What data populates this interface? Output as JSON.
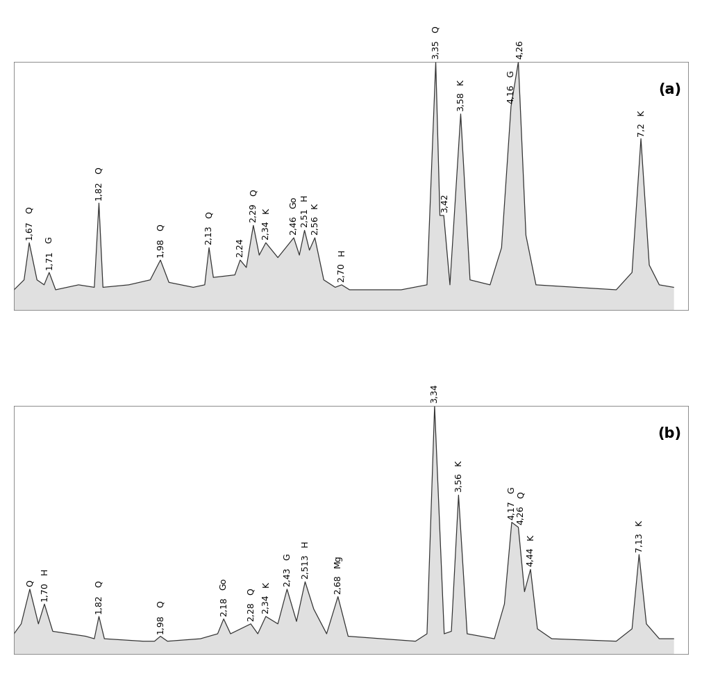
{
  "chart_data": [
    {
      "type": "line",
      "title": "(a)",
      "color": "#333333",
      "xlim": [
        56,
        9
      ],
      "ylim": [
        0,
        100
      ],
      "xticks": [],
      "yticks": [],
      "tick_labels": false,
      "x": [
        56,
        55.3,
        54.94,
        54.4,
        53.9,
        53.55,
        53.1,
        51.5,
        50.4,
        50.08,
        49.8,
        48,
        46.5,
        45.79,
        45.2,
        43.5,
        42.7,
        42.4,
        42.1,
        40.6,
        40.23,
        39.8,
        39.31,
        38.9,
        38.44,
        37.6,
        36.49,
        36.1,
        35.74,
        35.4,
        35.02,
        34.4,
        33.6,
        33.15,
        32.6,
        29,
        27.2,
        26.59,
        26.3,
        26.03,
        25.6,
        24.85,
        24.2,
        22.8,
        22,
        21.34,
        20.83,
        20.3,
        19.6,
        14,
        12.9,
        12.28,
        11.7,
        11,
        10
      ],
      "values": [
        8,
        12,
        27,
        12,
        10,
        15,
        8,
        10,
        9,
        43,
        9,
        10,
        12,
        20,
        11,
        9,
        10,
        25,
        13,
        14,
        20,
        17,
        34,
        22,
        27,
        21,
        29,
        22,
        32,
        24,
        29,
        12,
        9,
        10,
        8,
        8,
        10,
        100,
        38,
        38,
        10,
        79,
        12,
        10,
        25,
        82,
        100,
        30,
        10,
        8,
        15,
        69,
        18,
        10,
        9
      ],
      "annotations": [
        {
          "x": 54.94,
          "y": 27,
          "text": "1,67",
          "mineral": "Q"
        },
        {
          "x": 53.55,
          "y": 15,
          "text": "1,71",
          "mineral": "G"
        },
        {
          "x": 50.08,
          "y": 43,
          "text": "1,82",
          "mineral": "Q"
        },
        {
          "x": 45.79,
          "y": 20,
          "text": "1,98",
          "mineral": "Q"
        },
        {
          "x": 42.4,
          "y": 25,
          "text": "2,13",
          "mineral": "Q"
        },
        {
          "x": 40.23,
          "y": 20,
          "text": "2,24",
          "mineral": null
        },
        {
          "x": 39.31,
          "y": 34,
          "text": "2,29",
          "mineral": "Q"
        },
        {
          "x": 38.44,
          "y": 27,
          "text": "2,34",
          "mineral": "K"
        },
        {
          "x": 36.49,
          "y": 29,
          "text": "2,46",
          "mineral": "Go"
        },
        {
          "x": 35.74,
          "y": 32,
          "text": "2,51",
          "mineral": "H"
        },
        {
          "x": 35.02,
          "y": 29,
          "text": "2,56",
          "mineral": "K"
        },
        {
          "x": 33.15,
          "y": 10,
          "text": "2,70",
          "mineral": "H"
        },
        {
          "x": 26.59,
          "y": 100,
          "text": "3,35",
          "mineral": "Q"
        },
        {
          "x": 26.03,
          "y": 38,
          "text": "3,42",
          "mineral": null
        },
        {
          "x": 24.85,
          "y": 79,
          "text": "3,58",
          "mineral": "K"
        },
        {
          "x": 21.34,
          "y": 82,
          "text": "4,16",
          "mineral": "G"
        },
        {
          "x": 20.83,
          "y": 100,
          "text": "4,26",
          "mineral": null
        },
        {
          "x": 12.28,
          "y": 69,
          "text": "7,2",
          "mineral": "K"
        }
      ]
    },
    {
      "type": "line",
      "title": "(b)",
      "color": "#333333",
      "xlim": [
        56,
        9
      ],
      "ylim": [
        0,
        100
      ],
      "xticks": [],
      "yticks": [],
      "tick_labels": false,
      "x": [
        56,
        55.5,
        54.9,
        54.3,
        53.88,
        53.3,
        51,
        50.4,
        50.08,
        49.7,
        47,
        46.2,
        45.79,
        45.3,
        43,
        41.8,
        41.38,
        40.9,
        39.49,
        39,
        38.44,
        37.6,
        36.96,
        36.3,
        35.7,
        35.1,
        34.2,
        33.41,
        32.7,
        28,
        27.2,
        26.67,
        26,
        25.5,
        25,
        24.4,
        22.5,
        21.8,
        21.29,
        20.83,
        20.4,
        19.98,
        19.5,
        18.5,
        14,
        12.9,
        12.41,
        11.9,
        11,
        10
      ],
      "values": [
        8,
        12,
        26,
        12,
        20,
        9,
        7,
        6,
        15,
        6,
        5,
        5,
        7,
        5,
        6,
        8,
        14,
        8,
        12,
        8,
        15,
        12,
        26,
        13,
        29,
        18,
        8,
        23,
        7,
        5,
        8,
        100,
        8,
        9,
        64,
        8,
        6,
        20,
        53,
        51,
        25,
        34,
        10,
        6,
        5,
        10,
        40,
        12,
        6,
        6
      ],
      "annotations": [
        {
          "x": 54.9,
          "y": 26,
          "text": null,
          "mineral": "Q"
        },
        {
          "x": 53.88,
          "y": 20,
          "text": "1,70",
          "mineral": "H"
        },
        {
          "x": 50.08,
          "y": 15,
          "text": "1,82",
          "mineral": "Q"
        },
        {
          "x": 45.79,
          "y": 7,
          "text": "1,98",
          "mineral": "Q"
        },
        {
          "x": 41.38,
          "y": 14,
          "text": "2,18",
          "mineral": "Go"
        },
        {
          "x": 39.49,
          "y": 12,
          "text": "2,28",
          "mineral": "Q"
        },
        {
          "x": 38.44,
          "y": 15,
          "text": "2,34",
          "mineral": "K"
        },
        {
          "x": 36.96,
          "y": 26,
          "text": "2,43",
          "mineral": "G"
        },
        {
          "x": 35.7,
          "y": 29,
          "text": "2,513",
          "mineral": "H"
        },
        {
          "x": 33.41,
          "y": 23,
          "text": "2,68",
          "mineral": "Mg"
        },
        {
          "x": 26.67,
          "y": 100,
          "text": "3,34",
          "mineral": null
        },
        {
          "x": 25.0,
          "y": 64,
          "text": "3,56",
          "mineral": "K"
        },
        {
          "x": 21.29,
          "y": 53,
          "text": "4,17",
          "mineral": "G"
        },
        {
          "x": 20.83,
          "y": 51,
          "text": "4,26",
          "mineral": "Q"
        },
        {
          "x": 19.98,
          "y": 34,
          "text": "4,44",
          "mineral": "K"
        },
        {
          "x": 12.41,
          "y": 40,
          "text": "7,13",
          "mineral": "K"
        }
      ]
    }
  ]
}
